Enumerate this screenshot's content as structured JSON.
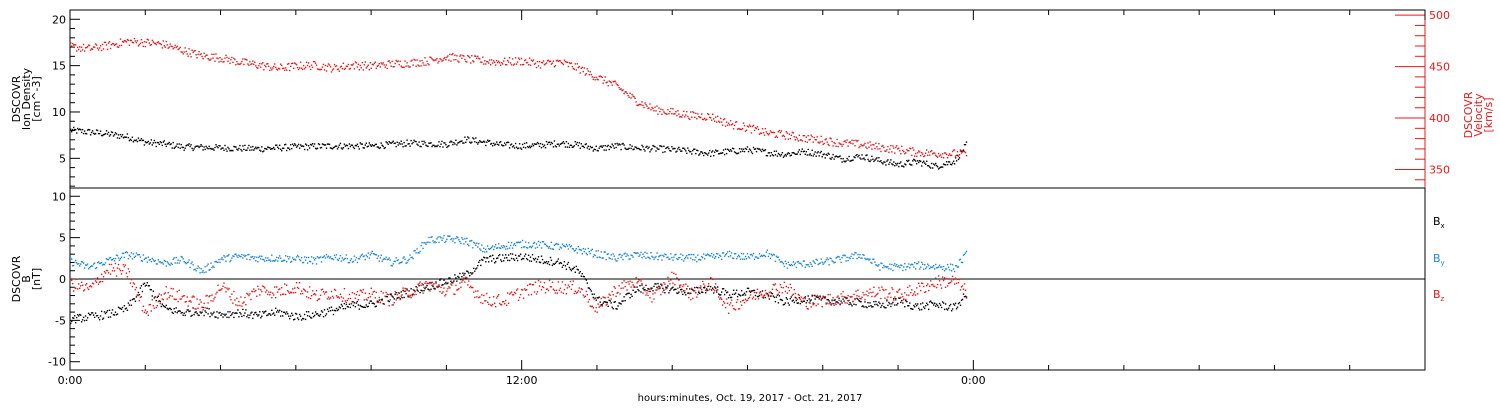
{
  "colors": {
    "black": "#000000",
    "red": "#e41a1c",
    "blue": "#1f87d6"
  },
  "x_axis_title": "hours:minutes, Oct. 19, 2017 - Oct. 21, 2017",
  "chart_data": [
    {
      "type": "scatter",
      "panel": "top",
      "ylabel_left": [
        "DSCOVR",
        "Ion Density",
        "[cm^-3]"
      ],
      "ylabel_right": [
        "DSCOVR",
        "Velocity",
        "[km/s]"
      ],
      "xlim_hours": [
        0,
        36
      ],
      "ylim_left": [
        1.8,
        21
      ],
      "yticks_left": [
        "5",
        "10",
        "15",
        "20"
      ],
      "ylim_right": [
        332,
        505
      ],
      "yticks_right": [
        "350",
        "400",
        "450",
        "500"
      ],
      "series": [
        {
          "axis": "left",
          "color": "#000000",
          "x": [
            0.0,
            0.5,
            1.0,
            1.5,
            2.0,
            2.5,
            3.0,
            4.0,
            5.0,
            6.0,
            7.0,
            8.0,
            9.0,
            10.0,
            10.5,
            11.0,
            11.5,
            12.0,
            12.5,
            13.0,
            13.5,
            14.0,
            14.5,
            15.0,
            16.0,
            17.0,
            17.5,
            18.0,
            18.5,
            19.0,
            19.5,
            20.0,
            20.5,
            21.0,
            21.5,
            22.0,
            22.5,
            23.0,
            23.5,
            23.8
          ],
          "y": [
            8.1,
            7.9,
            7.7,
            7.4,
            6.8,
            6.6,
            6.3,
            6.2,
            6.1,
            6.3,
            6.4,
            6.4,
            6.7,
            6.6,
            7.1,
            6.8,
            6.5,
            6.4,
            6.5,
            6.7,
            6.5,
            6.1,
            6.4,
            6.2,
            6.0,
            5.6,
            5.8,
            6.0,
            5.7,
            5.5,
            5.8,
            5.5,
            5.0,
            5.3,
            4.8,
            4.4,
            4.7,
            4.2,
            4.8,
            6.5
          ]
        },
        {
          "axis": "right",
          "color": "#e41a1c",
          "x": [
            0.0,
            0.5,
            1.0,
            1.5,
            2.0,
            2.5,
            3.0,
            3.5,
            4.0,
            4.5,
            5.0,
            5.5,
            6.0,
            6.5,
            7.0,
            7.5,
            8.0,
            8.5,
            9.0,
            9.5,
            10.0,
            10.5,
            11.0,
            11.5,
            12.0,
            12.5,
            13.0,
            13.5,
            14.0,
            14.5,
            15.0,
            15.5,
            16.0,
            16.5,
            17.0,
            17.5,
            18.0,
            18.5,
            19.0,
            19.5,
            20.0,
            20.5,
            21.0,
            21.5,
            22.0,
            22.5,
            23.0,
            23.5,
            23.8
          ],
          "y": [
            470,
            468,
            471,
            475,
            474,
            472,
            466,
            461,
            459,
            455,
            452,
            449,
            451,
            452,
            449,
            452,
            451,
            453,
            454,
            456,
            460,
            458,
            456,
            455,
            456,
            453,
            455,
            449,
            440,
            432,
            418,
            409,
            406,
            403,
            402,
            395,
            391,
            386,
            384,
            381,
            379,
            376,
            375,
            372,
            370,
            367,
            366,
            366,
            366
          ]
        }
      ]
    },
    {
      "type": "scatter",
      "panel": "bottom",
      "ylabel_left": [
        "DSCOVR",
        "B",
        "[nT]"
      ],
      "xlim_hours": [
        0,
        36
      ],
      "ylim": [
        -11,
        11
      ],
      "yticks": [
        "-10",
        "-5",
        "0",
        "5",
        "10"
      ],
      "xticks": [
        "0:00",
        "12:00",
        "0:00"
      ],
      "zero_line": true,
      "series": [
        {
          "name": "Bx",
          "name_base": "B",
          "name_sub": "x",
          "color": "#000000",
          "x": [
            0.0,
            0.5,
            1.0,
            1.5,
            2.0,
            2.5,
            3.0,
            3.5,
            4.0,
            4.5,
            5.0,
            5.5,
            6.0,
            6.5,
            7.0,
            7.5,
            8.0,
            8.5,
            9.0,
            9.5,
            10.0,
            10.5,
            11.0,
            11.5,
            12.0,
            12.5,
            13.0,
            13.5,
            14.0,
            14.5,
            15.0,
            15.5,
            16.0,
            16.5,
            17.0,
            17.5,
            18.0,
            18.5,
            19.0,
            19.5,
            20.0,
            20.5,
            21.0,
            21.5,
            22.0,
            22.5,
            23.0,
            23.5,
            23.8
          ],
          "y": [
            -4.8,
            -4.5,
            -4.2,
            -3.5,
            -0.5,
            -3.5,
            -4.0,
            -3.8,
            -4.2,
            -4.0,
            -4.4,
            -3.9,
            -4.5,
            -4.2,
            -3.7,
            -3.1,
            -3.0,
            -2.2,
            -1.5,
            -0.8,
            -0.2,
            0.5,
            2.4,
            2.6,
            2.8,
            2.4,
            2.1,
            1.0,
            -2.5,
            -3.2,
            -1.2,
            -0.9,
            -1.2,
            -1.5,
            -1.0,
            -1.8,
            -1.5,
            -1.9,
            -2.7,
            -2.3,
            -2.5,
            -2.6,
            -2.8,
            -3.2,
            -2.6,
            -3.3,
            -3.0,
            -3.4,
            -1.8
          ]
        },
        {
          "name": "By",
          "name_base": "B",
          "name_sub": "y",
          "color": "#1f87d6",
          "x": [
            0.0,
            0.5,
            1.0,
            1.5,
            2.0,
            2.5,
            3.0,
            3.5,
            4.0,
            4.5,
            5.0,
            5.5,
            6.0,
            6.5,
            7.0,
            7.5,
            8.0,
            8.5,
            9.0,
            9.5,
            10.0,
            10.5,
            11.0,
            11.5,
            12.0,
            12.5,
            13.0,
            13.5,
            14.0,
            14.5,
            15.0,
            15.5,
            16.0,
            16.5,
            17.0,
            17.5,
            18.0,
            18.5,
            19.0,
            19.5,
            20.0,
            20.5,
            21.0,
            21.5,
            22.0,
            22.5,
            23.0,
            23.5,
            23.8
          ],
          "y": [
            2.2,
            1.5,
            2.3,
            3.0,
            2.6,
            2.0,
            2.4,
            1.0,
            2.5,
            2.8,
            2.6,
            2.6,
            2.5,
            2.3,
            2.8,
            2.4,
            3.0,
            2.1,
            2.5,
            4.8,
            4.9,
            4.7,
            3.6,
            4.1,
            4.3,
            4.2,
            4.0,
            3.6,
            3.1,
            2.6,
            3.0,
            2.8,
            2.7,
            2.6,
            2.7,
            3.0,
            2.7,
            3.2,
            1.8,
            1.9,
            2.1,
            2.5,
            3.0,
            1.6,
            1.5,
            1.7,
            1.6,
            1.4,
            3.0
          ]
        },
        {
          "name": "Bz",
          "name_base": "B",
          "name_sub": "z",
          "color": "#e41a1c",
          "x": [
            0.0,
            0.5,
            1.0,
            1.5,
            2.0,
            2.5,
            3.0,
            3.5,
            4.0,
            4.5,
            5.0,
            5.5,
            6.0,
            6.5,
            7.0,
            7.5,
            8.0,
            8.5,
            9.0,
            9.5,
            10.0,
            10.5,
            11.0,
            11.5,
            12.0,
            12.5,
            13.0,
            13.5,
            14.0,
            14.5,
            15.0,
            15.5,
            16.0,
            16.5,
            17.0,
            17.5,
            18.0,
            18.5,
            19.0,
            19.5,
            20.0,
            20.5,
            21.0,
            21.5,
            22.0,
            22.5,
            23.0,
            23.5,
            23.8
          ],
          "y": [
            -0.5,
            -1.2,
            1.3,
            1.0,
            -4.0,
            -1.5,
            -2.2,
            -3.2,
            -0.8,
            -2.8,
            -1.2,
            -1.5,
            -0.8,
            -2.0,
            -1.5,
            -2.2,
            -1.8,
            -2.4,
            -1.5,
            -0.6,
            -1.4,
            -0.4,
            -2.4,
            -2.6,
            -1.5,
            -0.8,
            -0.9,
            -1.0,
            -3.5,
            -1.2,
            -0.3,
            -2.1,
            0.3,
            -1.8,
            -0.4,
            -3.4,
            -2.2,
            -1.3,
            -0.8,
            -2.8,
            -2.5,
            -2.2,
            -1.8,
            -1.5,
            -1.9,
            -1.2,
            -0.3,
            -0.2,
            -1.5
          ]
        }
      ]
    }
  ]
}
